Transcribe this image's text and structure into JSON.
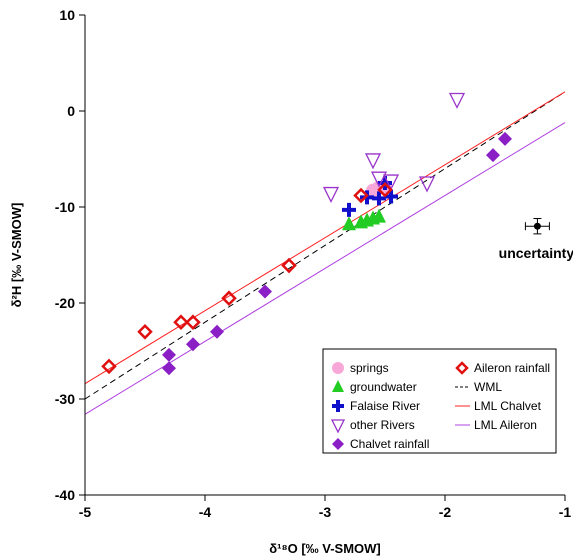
{
  "chart_data": {
    "type": "scatter",
    "xlabel": "δ¹⁸O [‰ V-SMOW]",
    "ylabel": "δ²H [‰ V-SMOW]",
    "xlim": [
      -5,
      -1
    ],
    "ylim": [
      -40,
      10
    ],
    "x_ticks": [
      "-5",
      "-4",
      "-3",
      "-2",
      "-1"
    ],
    "y_ticks": [
      "10",
      "0",
      "-10",
      "-20",
      "-30",
      "-40"
    ],
    "grid": false,
    "legend_position": "bottom-right",
    "series": [
      {
        "name": "springs",
        "marker": "circle",
        "color": "#f7a8d8",
        "points": [
          [
            -2.6,
            -8.3
          ],
          [
            -2.55,
            -8.0
          ],
          [
            -2.5,
            -7.9
          ]
        ]
      },
      {
        "name": "groundwater",
        "marker": "triangle",
        "color": "#22cc22",
        "points": [
          [
            -2.8,
            -11.8
          ],
          [
            -2.7,
            -11.6
          ],
          [
            -2.65,
            -11.4
          ],
          [
            -2.6,
            -11.2
          ],
          [
            -2.55,
            -11.0
          ]
        ]
      },
      {
        "name": "Falaise River",
        "marker": "cross",
        "color": "#1010cc",
        "points": [
          [
            -2.8,
            -10.3
          ],
          [
            -2.65,
            -9.0
          ],
          [
            -2.55,
            -9.1
          ],
          [
            -2.5,
            -7.5
          ],
          [
            -2.45,
            -8.9
          ]
        ]
      },
      {
        "name": "other Rivers",
        "marker": "triangle-down-open",
        "color": "#9933cc",
        "points": [
          [
            -2.95,
            -8.6
          ],
          [
            -2.6,
            -5.1
          ],
          [
            -2.55,
            -7.0
          ],
          [
            -2.45,
            -7.3
          ],
          [
            -2.15,
            -7.5
          ],
          [
            -1.9,
            1.2
          ]
        ]
      },
      {
        "name": "Chalvet rainfall",
        "marker": "diamond",
        "color": "#8b1fc6",
        "points": [
          [
            -4.3,
            -25.4
          ],
          [
            -4.3,
            -26.8
          ],
          [
            -4.1,
            -24.3
          ],
          [
            -3.9,
            -23.0
          ],
          [
            -3.5,
            -18.8
          ],
          [
            -1.6,
            -4.6
          ],
          [
            -1.5,
            -2.9
          ]
        ]
      },
      {
        "name": "Aileron rainfall",
        "marker": "diamond-open",
        "color": "#e01010",
        "points": [
          [
            -4.8,
            -26.6
          ],
          [
            -4.5,
            -23.0
          ],
          [
            -4.2,
            -22.0
          ],
          [
            -4.1,
            -22.0
          ],
          [
            -3.8,
            -19.5
          ],
          [
            -3.3,
            -16.1
          ],
          [
            -2.7,
            -8.8
          ],
          [
            -2.5,
            -8.2
          ]
        ]
      }
    ],
    "lines": [
      {
        "name": "WML",
        "style": "dashed",
        "color": "#000000",
        "slope": 8,
        "intercept": 10
      },
      {
        "name": "LML Chalvet",
        "style": "solid",
        "color": "#ff2020",
        "slope": 7.6,
        "intercept": 9.6
      },
      {
        "name": "LML Aileron",
        "style": "solid",
        "color": "#b040e0",
        "slope": 7.6,
        "intercept": 6.4
      }
    ],
    "annotation": {
      "text": "uncertainty",
      "x": -1.23,
      "y": -12.0,
      "x_err": 0.1,
      "y_err": 0.8
    }
  }
}
